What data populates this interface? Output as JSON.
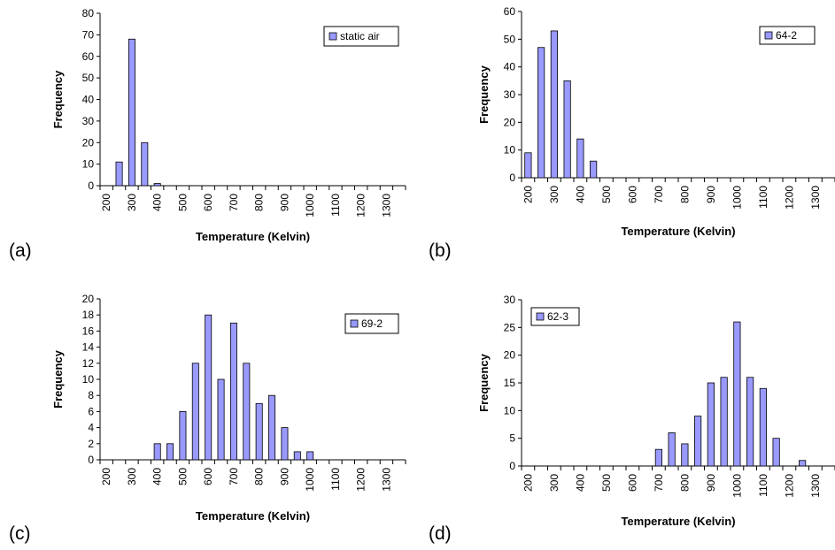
{
  "colors": {
    "bar_fill": "#9999ff",
    "bar_stroke": "#000000"
  },
  "chart_data": [
    {
      "type": "bar",
      "panel_label": "(a)",
      "series": [
        {
          "name": "static air",
          "values": [
            0,
            11,
            68,
            20,
            1,
            0,
            0,
            0,
            0,
            0,
            0,
            0,
            0,
            0,
            0,
            0,
            0,
            0,
            0,
            0,
            0,
            0,
            0,
            0
          ]
        }
      ],
      "x_tick_labels": [
        "200",
        "300",
        "400",
        "500",
        "600",
        "700",
        "800",
        "900",
        "1000",
        "1100",
        "1200",
        "1300"
      ],
      "xlabel": "Temperature (Kelvin)",
      "ylabel": "Frequency",
      "ylim": [
        0,
        80
      ],
      "y_ticks": [
        0,
        10,
        20,
        30,
        40,
        50,
        60,
        70,
        80
      ],
      "legend": "top-right",
      "grid": false
    },
    {
      "type": "bar",
      "panel_label": "(b)",
      "series": [
        {
          "name": "64-2",
          "values": [
            9,
            47,
            53,
            35,
            14,
            6,
            0,
            0,
            0,
            0,
            0,
            0,
            0,
            0,
            0,
            0,
            0,
            0,
            0,
            0,
            0,
            0,
            0,
            0
          ]
        }
      ],
      "x_tick_labels": [
        "200",
        "300",
        "400",
        "500",
        "600",
        "700",
        "800",
        "900",
        "1000",
        "1100",
        "1200",
        "1300"
      ],
      "xlabel": "Temperature (Kelvin)",
      "ylabel": "Frequency",
      "ylim": [
        0,
        60
      ],
      "y_ticks": [
        0,
        10,
        20,
        30,
        40,
        50,
        60
      ],
      "legend": "top-right",
      "grid": false
    },
    {
      "type": "bar",
      "panel_label": "(c)",
      "series": [
        {
          "name": "69-2",
          "values": [
            0,
            0,
            0,
            0,
            2,
            2,
            6,
            12,
            18,
            10,
            17,
            12,
            7,
            8,
            4,
            1,
            1,
            0,
            0,
            0,
            0,
            0,
            0,
            0
          ]
        }
      ],
      "x_tick_labels": [
        "200",
        "300",
        "400",
        "500",
        "600",
        "700",
        "800",
        "900",
        "1000",
        "1100",
        "1200",
        "1300"
      ],
      "xlabel": "Temperature (Kelvin)",
      "ylabel": "Frequency",
      "ylim": [
        0,
        20
      ],
      "y_ticks": [
        0,
        2,
        4,
        6,
        8,
        10,
        12,
        14,
        16,
        18,
        20
      ],
      "legend": "top-right",
      "grid": false
    },
    {
      "type": "bar",
      "panel_label": "(d)",
      "series": [
        {
          "name": "62-3",
          "values": [
            0,
            0,
            0,
            0,
            0,
            0,
            0,
            0,
            0,
            0,
            3,
            6,
            4,
            9,
            15,
            16,
            26,
            16,
            14,
            5,
            0,
            1
          ]
        }
      ],
      "x_tick_labels": [
        "200",
        "300",
        "400",
        "500",
        "600",
        "700",
        "800",
        "900",
        "1000",
        "1100",
        "1200",
        "1300"
      ],
      "xlabel": "Temperature (Kelvin)",
      "ylabel": "Frequency",
      "ylim": [
        0,
        30
      ],
      "y_ticks": [
        0,
        5,
        10,
        15,
        20,
        25,
        30
      ],
      "legend": "top-left",
      "grid": false
    }
  ]
}
